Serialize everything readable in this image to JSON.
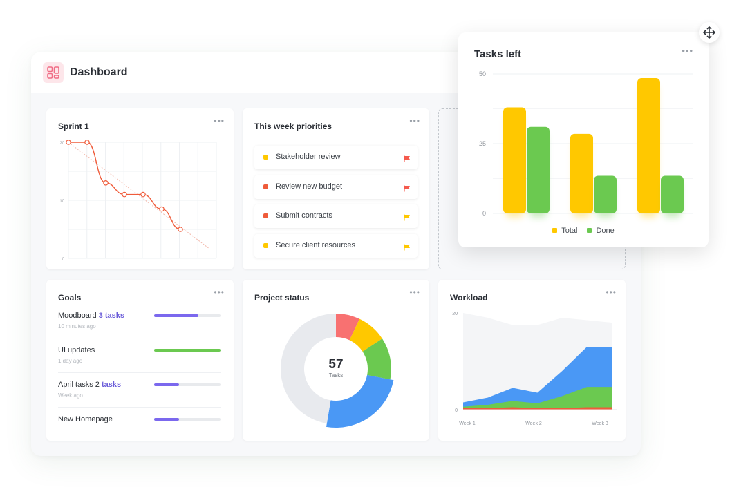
{
  "header": {
    "title": "Dashboard",
    "logo_icon": "dashboard-grid-icon"
  },
  "colors": {
    "red": "#ef5b3a",
    "yellow": "#ffc800",
    "green": "#6bc950",
    "blue": "#4a98f5",
    "purple": "#7b68ee",
    "pink": "#f87171",
    "gray": "#e8eaee"
  },
  "sprint": {
    "title": "Sprint 1",
    "menu": "•••",
    "chart_data": {
      "type": "line",
      "yticks": [
        "20",
        "10",
        "0"
      ],
      "ylim": [
        0,
        20
      ],
      "x": [
        0,
        1,
        2,
        3,
        4,
        5,
        6
      ],
      "values": [
        20,
        20,
        13,
        11,
        11,
        8.5,
        5
      ],
      "ideal": [
        [
          0,
          20
        ],
        [
          7.5,
          1.8
        ]
      ]
    }
  },
  "priorities": {
    "title": "This week priorities",
    "menu": "•••",
    "items": [
      {
        "label": "Stakeholder review",
        "dot_color": "#ffc800",
        "flag_color": "#f55a4e"
      },
      {
        "label": "Review new budget",
        "dot_color": "#ef5b3a",
        "flag_color": "#f55a4e"
      },
      {
        "label": "Submit contracts",
        "dot_color": "#ef5b3a",
        "flag_color": "#ffc800"
      },
      {
        "label": "Secure client resources",
        "dot_color": "#ffc800",
        "flag_color": "#ffc800"
      }
    ]
  },
  "goals": {
    "title": "Goals",
    "menu": "•••",
    "items": [
      {
        "name": "Moodboard",
        "accent": "3 tasks",
        "time": "10 minutes ago",
        "progress": 0.67,
        "color": "#7b68ee"
      },
      {
        "name": "UI updates",
        "accent": "",
        "time": "1 day ago",
        "progress": 1.0,
        "color": "#6bc950"
      },
      {
        "name": "April tasks 2",
        "accent": "tasks",
        "time": "Week ago",
        "progress": 0.37,
        "color": "#7b68ee"
      },
      {
        "name": "New Homepage",
        "accent": "",
        "time": "",
        "progress": 0.37,
        "color": "#7b68ee"
      }
    ]
  },
  "project_status": {
    "title": "Project status",
    "menu": "•••",
    "total": "57",
    "total_label": "Tasks",
    "chart_data": {
      "type": "pie",
      "slices": [
        {
          "value": 4.0,
          "color": "#f87171"
        },
        {
          "value": 5.0,
          "color": "#ffc800"
        },
        {
          "value": 7.0,
          "color": "#6bc950"
        },
        {
          "value": 14.0,
          "color": "#4a98f5"
        },
        {
          "value": 27.0,
          "color": "#e8eaee"
        }
      ]
    }
  },
  "workload": {
    "title": "Workload",
    "menu": "•••",
    "chart_data": {
      "type": "area",
      "yticks": [
        "20",
        "0"
      ],
      "ylim": [
        0,
        20
      ],
      "xlabels": [
        "Week 1",
        "Week 2",
        "Week 3"
      ],
      "x": [
        0,
        1,
        2,
        3,
        4,
        5,
        6
      ],
      "series": [
        {
          "values": [
            20,
            19,
            17.5,
            17.5,
            19,
            18.5,
            18
          ],
          "color": "#f4f5f7"
        },
        {
          "values": [
            1.5,
            2.5,
            4.5,
            3.5,
            8,
            13,
            13
          ],
          "color": "#4a98f5"
        },
        {
          "values": [
            0.6,
            1,
            1.8,
            1.3,
            2.8,
            4.7,
            4.7
          ],
          "color": "#6bc950"
        },
        {
          "values": [
            0.3,
            0.3,
            0.5,
            0.3,
            0.3,
            0.5,
            0.5
          ],
          "color": "#ef5b3a"
        }
      ]
    }
  },
  "tasks_left": {
    "title": "Tasks left",
    "menu": "•••",
    "chart_data": {
      "type": "bar",
      "yticks": [
        "50",
        "25",
        "0"
      ],
      "ylim": [
        0,
        50
      ],
      "categories": [
        "",
        "",
        ""
      ],
      "series": [
        {
          "name": "Total",
          "values": [
            38,
            28.5,
            48.5
          ],
          "color": "#ffc800"
        },
        {
          "name": "Done",
          "values": [
            31,
            13.5,
            13.5
          ],
          "color": "#6bc950"
        }
      ]
    },
    "legend": [
      {
        "label": "Total",
        "color": "#ffc800"
      },
      {
        "label": "Done",
        "color": "#6bc950"
      }
    ]
  },
  "move_icon": "move-arrows-icon"
}
